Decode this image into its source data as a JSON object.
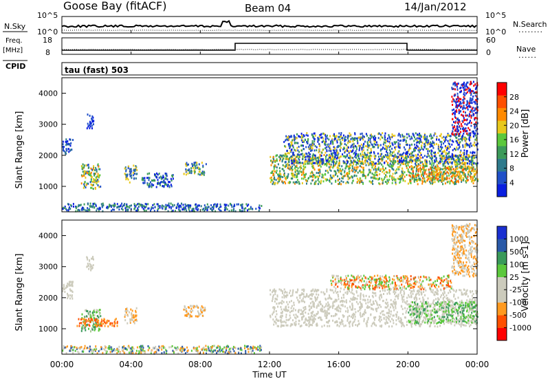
{
  "header": {
    "station": "Goose Bay (fitACF)",
    "beam": "Beam 04",
    "date": "14/Jan/2012"
  },
  "top_panels": {
    "nsky": {
      "label": "N.Sky",
      "ticks": [
        "10^5",
        "10^0"
      ],
      "ticks_right": [
        "10^5",
        "10^0"
      ],
      "right_label": "N.Search",
      "right_dots": "........"
    },
    "freq": {
      "label_line1": "Freq.",
      "label_line2": "[MHz]",
      "ticks": [
        "18",
        "8"
      ],
      "ticks_right": [
        "60",
        "0"
      ],
      "right_label": "Nave",
      "right_dots": "......"
    },
    "cpid": {
      "label": "CPID",
      "text": "tau (fast) 503"
    }
  },
  "time_axis": {
    "ticks": [
      "00:00",
      "04:00",
      "08:00",
      "12:00",
      "16:00",
      "20:00",
      "00:00"
    ],
    "label": "Time UT"
  },
  "chart_data": [
    {
      "type": "heatmap",
      "name": "power",
      "ylabel": "Slant Range [km]",
      "yticks": [
        "4000",
        "3000",
        "2000",
        "1000"
      ],
      "ylim": [
        180,
        4500
      ],
      "xlim": [
        0,
        24
      ],
      "colorbar": {
        "label": "Power [dB]",
        "ticks": [
          "28",
          "24",
          "20",
          "16",
          "12",
          "8",
          "4"
        ],
        "colors": [
          "#0a1fe0",
          "#2050c8",
          "#2e7a8c",
          "#3c9a5a",
          "#5cc83c",
          "#e8c81c",
          "#ff8a00",
          "#ff5000",
          "#ff0000"
        ]
      },
      "regions": [
        {
          "t0": 0.0,
          "t1": 0.6,
          "r0": 2050,
          "r1": 2550,
          "colors": [
            "#0a1fe0",
            "#2050c8",
            "#2e7a8c"
          ]
        },
        {
          "t0": 1.1,
          "t1": 2.2,
          "r0": 950,
          "r1": 1750,
          "colors": [
            "#3c9a5a",
            "#5cc83c",
            "#e8c81c",
            "#ff8a00",
            "#2050c8"
          ]
        },
        {
          "t0": 1.4,
          "t1": 1.8,
          "r0": 2900,
          "r1": 3350,
          "colors": [
            "#0a1fe0",
            "#2050c8"
          ]
        },
        {
          "t0": 3.6,
          "t1": 4.3,
          "r0": 1150,
          "r1": 1700,
          "colors": [
            "#2050c8",
            "#2e7a8c",
            "#e8c81c"
          ]
        },
        {
          "t0": 4.6,
          "t1": 6.4,
          "r0": 1000,
          "r1": 1450,
          "colors": [
            "#0a1fe0",
            "#2050c8",
            "#3c9a5a"
          ]
        },
        {
          "t0": 7.0,
          "t1": 8.3,
          "r0": 1400,
          "r1": 1800,
          "colors": [
            "#2050c8",
            "#3c9a5a",
            "#e8c81c"
          ]
        },
        {
          "t0": 0.0,
          "t1": 11.5,
          "r0": 230,
          "r1": 480,
          "colors": [
            "#0a1fe0",
            "#2050c8",
            "#2e7a8c",
            "#3c9a5a"
          ]
        },
        {
          "t0": 12.0,
          "t1": 23.8,
          "r0": 1100,
          "r1": 2050,
          "colors": [
            "#3c9a5a",
            "#5cc83c",
            "#e8c81c",
            "#ff8a00",
            "#2e7a8c"
          ]
        },
        {
          "t0": 12.8,
          "t1": 24.0,
          "r0": 1750,
          "r1": 2750,
          "colors": [
            "#0a1fe0",
            "#2050c8",
            "#3c9a5a",
            "#e8c81c"
          ]
        },
        {
          "t0": 20.0,
          "t1": 24.0,
          "r0": 1200,
          "r1": 1700,
          "colors": [
            "#ff8a00",
            "#ff5000",
            "#e8c81c",
            "#3c9a5a"
          ]
        },
        {
          "t0": 22.5,
          "t1": 24.0,
          "r0": 2700,
          "r1": 4400,
          "colors": [
            "#0a1fe0",
            "#2050c8",
            "#ff0000"
          ]
        }
      ]
    },
    {
      "type": "heatmap",
      "name": "velocity",
      "ylabel": "Slant Range [km]",
      "yticks": [
        "4000",
        "3000",
        "2000",
        "1000"
      ],
      "ylim": [
        180,
        4500
      ],
      "xlim": [
        0,
        24
      ],
      "colorbar": {
        "label": "Velocity [m s-1]",
        "ticks": [
          "1000",
          "500",
          "100",
          "25",
          "-25",
          "-100",
          "-500",
          "-1000"
        ],
        "colors": [
          "#ff0000",
          "#ff5000",
          "#ff9a20",
          "#cccbbc",
          "#cccbbc",
          "#5cc83c",
          "#3a9a5a",
          "#2a5aa8",
          "#1a2fd0"
        ]
      },
      "regions": [
        {
          "t0": 0.0,
          "t1": 0.6,
          "r0": 2000,
          "r1": 2550,
          "colors": [
            "#cccbbc"
          ]
        },
        {
          "t0": 1.1,
          "t1": 2.2,
          "r0": 950,
          "r1": 1650,
          "colors": [
            "#5cc83c",
            "#3a9a5a",
            "#cccbbc"
          ]
        },
        {
          "t0": 1.4,
          "t1": 1.8,
          "r0": 2900,
          "r1": 3350,
          "colors": [
            "#cccbbc"
          ]
        },
        {
          "t0": 3.6,
          "t1": 4.3,
          "r0": 1200,
          "r1": 1700,
          "colors": [
            "#ff9a20",
            "#cccbbc"
          ]
        },
        {
          "t0": 0.8,
          "t1": 3.2,
          "r0": 1100,
          "r1": 1350,
          "colors": [
            "#ff5000",
            "#ff9a20"
          ]
        },
        {
          "t0": 7.0,
          "t1": 8.3,
          "r0": 1400,
          "r1": 1800,
          "colors": [
            "#ff9a20",
            "#cccbbc"
          ]
        },
        {
          "t0": 0.0,
          "t1": 11.5,
          "r0": 230,
          "r1": 480,
          "colors": [
            "#cccbbc",
            "#5cc83c",
            "#ff9a20",
            "#2a5aa8"
          ]
        },
        {
          "t0": 12.0,
          "t1": 24.0,
          "r0": 1100,
          "r1": 2300,
          "colors": [
            "#cccbbc"
          ]
        },
        {
          "t0": 15.5,
          "t1": 22.5,
          "r0": 2300,
          "r1": 2750,
          "colors": [
            "#ff9a20",
            "#ff5000",
            "#cccbbc",
            "#5cc83c"
          ]
        },
        {
          "t0": 20.0,
          "t1": 24.0,
          "r0": 1200,
          "r1": 1900,
          "colors": [
            "#5cc83c",
            "#3a9a5a",
            "#cccbbc"
          ]
        },
        {
          "t0": 22.5,
          "t1": 24.0,
          "r0": 2700,
          "r1": 4400,
          "colors": [
            "#cccbbc",
            "#ff9a20"
          ]
        }
      ]
    }
  ]
}
